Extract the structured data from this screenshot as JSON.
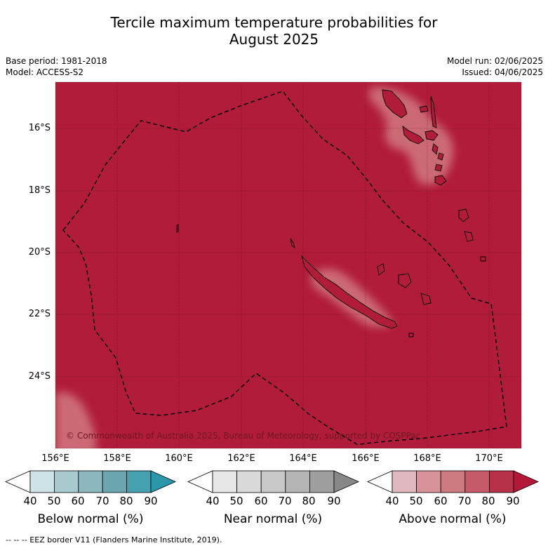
{
  "title_line1": "Tercile maximum temperature probabilities for",
  "title_line2": "August 2025",
  "base_period": "Base period: 1981-2018",
  "model": "Model: ACCESS-S2",
  "model_run": "Model run: 02/06/2025",
  "issued": "Issued: 04/06/2025",
  "copyright": "© Commonwealth of Australia 2025, Bureau of Meteorology, supported by COSPPac",
  "footer_legend": "--  --  -- EEZ border V11 (Flanders Marine Institute, 2019).",
  "map": {
    "lat_ticks": [
      "16°S",
      "18°S",
      "20°S",
      "22°S",
      "24°S"
    ],
    "lon_ticks": [
      "156°E",
      "158°E",
      "160°E",
      "162°E",
      "164°E",
      "166°E",
      "168°E",
      "170°E"
    ],
    "colors": {
      "above_80_90": "#b11c3a",
      "above_70_80": "#c4566a",
      "above_60_70": "#d07880"
    }
  },
  "colorbars": [
    {
      "label": "Below normal (%)",
      "ticks": [
        "40",
        "50",
        "60",
        "70",
        "80",
        "90"
      ],
      "colors": [
        "#cde3e8",
        "#a8c9ce",
        "#8cb6be",
        "#6aa5b0",
        "#45a0b0",
        "#2a98aa"
      ]
    },
    {
      "label": "Near normal (%)",
      "ticks": [
        "40",
        "50",
        "60",
        "70",
        "80",
        "90"
      ],
      "colors": [
        "#e7e7e7",
        "#d9d9d9",
        "#c8c8c8",
        "#b4b4b4",
        "#9e9e9e",
        "#878787"
      ]
    },
    {
      "label": "Above normal (%)",
      "ticks": [
        "40",
        "50",
        "60",
        "70",
        "80",
        "90"
      ],
      "colors": [
        "#dfb9bf",
        "#d8939a",
        "#cd7a80",
        "#c55a68",
        "#b73249",
        "#b3183a"
      ]
    }
  ]
}
